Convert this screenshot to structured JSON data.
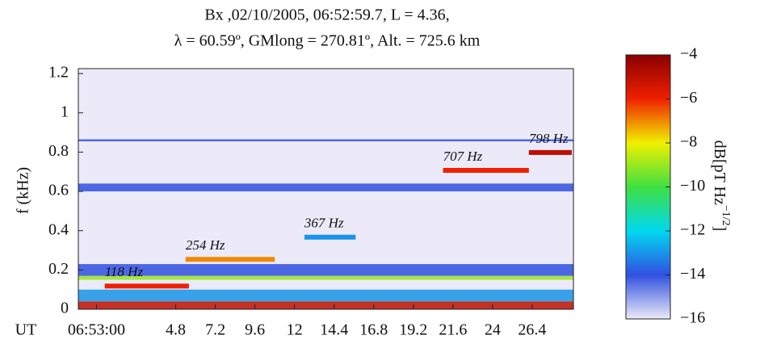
{
  "chart_data": {
    "type": "spectrogram",
    "title": [
      "Bx ,02/10/2005, 06:52:59.7, L = 4.36,",
      "λ = 60.59º, GMlong = 270.81º, Alt. = 725.6 km"
    ],
    "xlabel": "UT",
    "ylabel": "f (kHz)",
    "xlim": [
      -1.1,
      28.9
    ],
    "xticks": [
      {
        "value": 0,
        "label": "06:53:00"
      },
      4.8,
      7.2,
      9.6,
      12,
      14.4,
      16.8,
      19.2,
      21.6,
      24,
      26.4
    ],
    "ylim": [
      0,
      1.225
    ],
    "yticks": [
      0,
      0.2,
      0.4,
      0.6,
      0.8,
      1,
      1.2
    ],
    "colorbar": {
      "label": "dB[pT Hz",
      "label_sup": "−1/2",
      "label_end": "]",
      "lim": [
        -16,
        -4
      ],
      "ticks": [
        {
          "value": -4,
          "label": "−4"
        },
        {
          "value": -6,
          "label": "−6"
        },
        {
          "value": -8,
          "label": "−8"
        },
        {
          "value": -10,
          "label": "−10"
        },
        {
          "value": -12,
          "label": "−12"
        },
        {
          "value": -14,
          "label": "−14"
        },
        {
          "value": -16,
          "label": "−16"
        }
      ],
      "colormap": [
        "#eceaf8",
        "#3050e0",
        "#00d8f0",
        "#40e040",
        "#f0f000",
        "#f02000",
        "#8a0000"
      ]
    },
    "bands": [
      {
        "f": 0.02,
        "width": 0.04,
        "level": -5
      },
      {
        "f": 0.07,
        "width": 0.06,
        "level": -13
      },
      {
        "f": 0.16,
        "width": 0.02,
        "level": -9
      },
      {
        "f": 0.2,
        "width": 0.06,
        "level": -14
      },
      {
        "f": 0.62,
        "width": 0.04,
        "level": -14
      },
      {
        "f": 0.86,
        "width": 0.01,
        "level": -14
      }
    ],
    "tones": [
      {
        "label": "118 Hz",
        "f": 0.118,
        "t": [
          0.5,
          5.6
        ],
        "level": -6
      },
      {
        "label": "254 Hz",
        "f": 0.254,
        "t": [
          5.4,
          10.8
        ],
        "level": -7
      },
      {
        "label": "367 Hz",
        "f": 0.367,
        "t": [
          12.6,
          15.7
        ],
        "level": -13
      },
      {
        "label": "707 Hz",
        "f": 0.707,
        "t": [
          21,
          26.2
        ],
        "level": -6
      },
      {
        "label": "798 Hz",
        "f": 0.798,
        "t": [
          26.2,
          28.8
        ],
        "level": -5
      }
    ]
  }
}
